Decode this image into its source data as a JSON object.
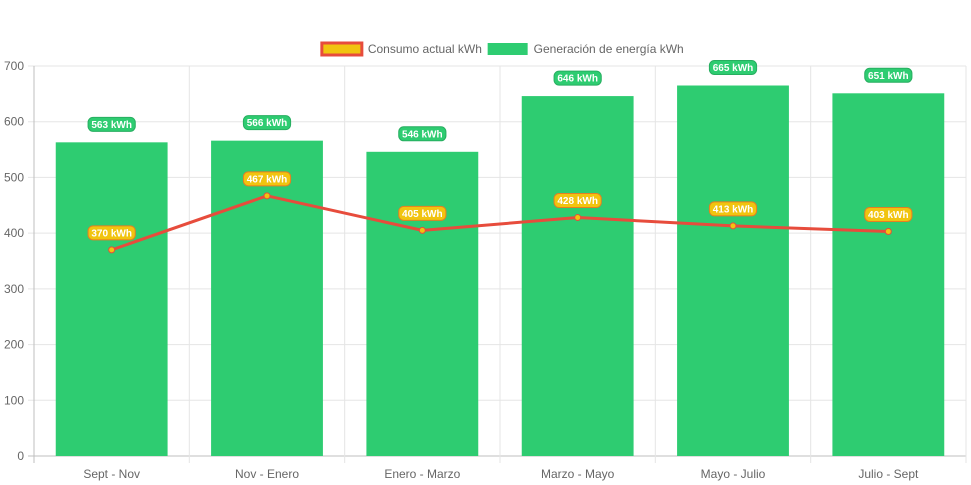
{
  "chart_data": {
    "type": "bar",
    "categories": [
      "Sept - Nov",
      "Nov - Enero",
      "Enero - Marzo",
      "Marzo - Mayo",
      "Mayo - Julio",
      "Julio - Sept"
    ],
    "series": [
      {
        "name": "Consumo actual kWh",
        "type": "line",
        "values": [
          370,
          467,
          405,
          428,
          413,
          403
        ],
        "labels": [
          "370 kWh",
          "467 kWh",
          "405 kWh",
          "428 kWh",
          "413 kWh",
          "403 kWh"
        ],
        "color": "#e74c3c",
        "fill": "#f1c40f"
      },
      {
        "name": "Generación de energía kWh",
        "type": "bar",
        "values": [
          563,
          566,
          546,
          646,
          665,
          651
        ],
        "labels": [
          "563 kWh",
          "566 kWh",
          "546 kWh",
          "646 kWh",
          "665 kWh",
          "651 kWh"
        ],
        "color": "#2ecc71"
      }
    ],
    "yticks": [
      "0",
      "100",
      "200",
      "300",
      "400",
      "500",
      "600",
      "700"
    ],
    "ylim": [
      0,
      700
    ],
    "grid": true,
    "legend_position": "top-center"
  }
}
